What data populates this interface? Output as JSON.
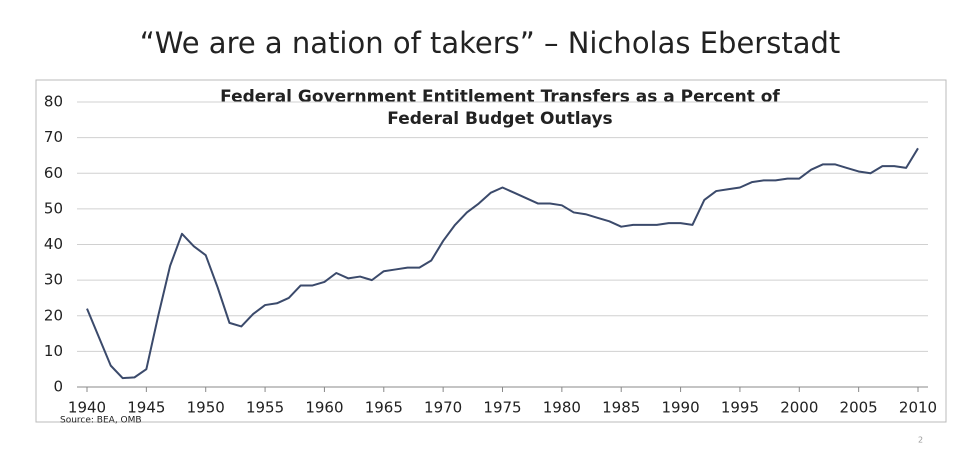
{
  "page_title": "“We are a nation of takers” – Nicholas Eberstadt",
  "page_number": "2",
  "chart_data": {
    "type": "line",
    "title": [
      "Federal Government Entitlement Transfers as a Percent of",
      "Federal Budget Outlays"
    ],
    "source": "Source: BEA, OMB",
    "x": [
      1940,
      1941,
      1942,
      1943,
      1944,
      1945,
      1946,
      1947,
      1948,
      1949,
      1950,
      1951,
      1952,
      1953,
      1954,
      1955,
      1956,
      1957,
      1958,
      1959,
      1960,
      1961,
      1962,
      1963,
      1964,
      1965,
      1966,
      1967,
      1968,
      1969,
      1970,
      1971,
      1972,
      1973,
      1974,
      1975,
      1976,
      1977,
      1978,
      1979,
      1980,
      1981,
      1982,
      1983,
      1984,
      1985,
      1986,
      1987,
      1988,
      1989,
      1990,
      1991,
      1992,
      1993,
      1994,
      1995,
      1996,
      1997,
      1998,
      1999,
      2000,
      2001,
      2002,
      2003,
      2004,
      2005,
      2006,
      2007,
      2008,
      2009,
      2010
    ],
    "series": [
      {
        "name": "Entitlement transfers",
        "color": "#3b4a6b",
        "values": [
          22,
          14,
          6,
          2.5,
          2.7,
          5,
          20,
          34,
          43,
          39.5,
          37,
          28,
          18,
          17,
          20.5,
          23,
          23.5,
          25,
          28.5,
          28.5,
          29.5,
          32,
          30.5,
          31,
          30,
          32.5,
          33,
          33.5,
          33.5,
          35.5,
          41,
          45.5,
          49,
          51.5,
          54.5,
          56,
          54.5,
          53,
          51.5,
          51.5,
          51,
          49,
          48.5,
          47.5,
          46.5,
          45,
          45.5,
          45.5,
          45.5,
          46,
          46,
          45.5,
          52.5,
          55,
          55.5,
          56,
          57.5,
          58,
          58,
          58.5,
          58.5,
          61,
          62.5,
          62.5,
          61.5,
          60.5,
          60,
          62,
          62,
          61.5,
          67
        ]
      }
    ],
    "xlim": [
      1940,
      2010
    ],
    "xticks": [
      1940,
      1945,
      1950,
      1955,
      1960,
      1965,
      1970,
      1975,
      1980,
      1985,
      1990,
      1995,
      2000,
      2005,
      2010
    ],
    "ylim": [
      0,
      80
    ],
    "yticks": [
      0,
      10,
      20,
      30,
      40,
      50,
      60,
      70,
      80
    ],
    "grid": true
  }
}
